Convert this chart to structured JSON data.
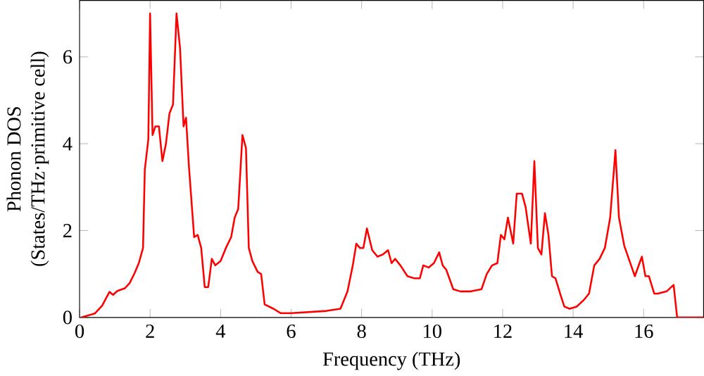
{
  "chart_data": {
    "type": "line",
    "xlabel": "Frequency (THz)",
    "ylabel": "Phonon DOS\n(States/THz·primitive cell)",
    "xlim": [
      0,
      17.7
    ],
    "ylim": [
      0,
      7.3
    ],
    "xticks": [
      0,
      2,
      4,
      6,
      8,
      10,
      12,
      14,
      16
    ],
    "yticks": [
      0,
      2,
      4,
      6
    ],
    "grid": false,
    "x": [
      0.04,
      0.43,
      0.64,
      0.85,
      0.95,
      1.07,
      1.28,
      1.42,
      1.56,
      1.68,
      1.8,
      1.85,
      1.95,
      2.0,
      2.07,
      2.15,
      2.25,
      2.35,
      2.45,
      2.55,
      2.65,
      2.75,
      2.85,
      2.95,
      3.02,
      3.1,
      3.25,
      3.35,
      3.45,
      3.55,
      3.65,
      3.75,
      3.85,
      4.0,
      4.15,
      4.3,
      4.4,
      4.5,
      4.62,
      4.72,
      4.8,
      4.9,
      5.05,
      5.15,
      5.25,
      5.5,
      5.7,
      6.0,
      7.0,
      7.4,
      7.6,
      7.75,
      7.85,
      7.95,
      8.05,
      8.15,
      8.3,
      8.45,
      8.6,
      8.75,
      8.85,
      8.95,
      9.1,
      9.3,
      9.5,
      9.65,
      9.75,
      9.9,
      10.05,
      10.2,
      10.3,
      10.4,
      10.6,
      10.8,
      11.1,
      11.4,
      11.55,
      11.7,
      11.85,
      11.95,
      12.05,
      12.15,
      12.3,
      12.4,
      12.55,
      12.65,
      12.8,
      12.9,
      13.0,
      13.1,
      13.2,
      13.3,
      13.4,
      13.5,
      13.65,
      13.75,
      13.9,
      14.1,
      14.3,
      14.45,
      14.6,
      14.75,
      14.9,
      15.05,
      15.2,
      15.3,
      15.45,
      15.6,
      15.75,
      15.95,
      16.05,
      16.15,
      16.3,
      16.4,
      16.65,
      16.85,
      16.95,
      17.7
    ],
    "series": [
      {
        "color": "#ff0000",
        "values": [
          0,
          0.09,
          0.27,
          0.59,
          0.52,
          0.61,
          0.67,
          0.79,
          1.02,
          1.25,
          1.6,
          3.4,
          4.1,
          7.0,
          4.2,
          4.4,
          4.4,
          3.6,
          4.0,
          4.7,
          4.9,
          7.0,
          6.2,
          4.4,
          4.6,
          3.5,
          1.85,
          1.9,
          1.6,
          0.7,
          0.7,
          1.35,
          1.2,
          1.3,
          1.6,
          1.85,
          2.3,
          2.5,
          4.2,
          3.9,
          1.6,
          1.3,
          1.05,
          1.0,
          0.3,
          0.2,
          0.1,
          0.1,
          0.15,
          0.2,
          0.6,
          1.2,
          1.7,
          1.6,
          1.6,
          2.05,
          1.55,
          1.4,
          1.45,
          1.55,
          1.25,
          1.35,
          1.2,
          0.95,
          0.9,
          0.9,
          1.2,
          1.15,
          1.25,
          1.5,
          1.2,
          1.1,
          0.65,
          0.6,
          0.6,
          0.65,
          1.0,
          1.2,
          1.25,
          1.9,
          1.8,
          2.3,
          1.7,
          2.85,
          2.85,
          2.55,
          1.7,
          3.6,
          1.6,
          1.45,
          2.4,
          1.9,
          0.95,
          0.9,
          0.5,
          0.25,
          0.2,
          0.25,
          0.4,
          0.55,
          1.2,
          1.35,
          1.6,
          2.3,
          3.85,
          2.3,
          1.65,
          1.3,
          0.95,
          1.4,
          0.95,
          0.95,
          0.55,
          0.55,
          0.6,
          0.75,
          0.0,
          0.0
        ]
      }
    ]
  }
}
